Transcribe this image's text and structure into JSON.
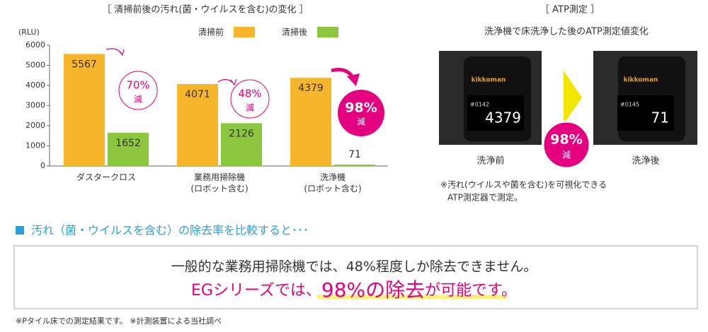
{
  "chart_data": {
    "type": "bar",
    "title": "［ 清掃前後の汚れ(菌・ウイルスを含む)の変化 ］",
    "y_label": "(RLU)",
    "categories": [
      "ダスタークロス",
      "業務用掃除機\n(ロボット含む)",
      "洗浄機\n(ロボット含む)"
    ],
    "series": [
      {
        "name": "清掃前",
        "color": "#f7b52c",
        "values": [
          5567,
          4071,
          4379
        ]
      },
      {
        "name": "清掃後",
        "color": "#8cc63f",
        "values": [
          1652,
          2126,
          71
        ]
      }
    ],
    "ylim": [
      0,
      6000
    ],
    "yticks": [
      0,
      1000,
      2000,
      3000,
      4000,
      5000,
      6000
    ],
    "grid": false,
    "annotations": [
      {
        "percent": "70%",
        "suffix": "減"
      },
      {
        "percent": "48%",
        "suffix": "減"
      },
      {
        "percent": "98%",
        "suffix": "減"
      }
    ]
  },
  "atp": {
    "title": "［ ATP測定 ］",
    "subtitle": "洗浄機で床洗浄した後のATP測定値変化",
    "before": {
      "label": "洗浄前",
      "brand": "kikkoman",
      "id": "#0142",
      "reading": "4379"
    },
    "after": {
      "label": "洗浄後",
      "brand": "kikkoman",
      "id": "#0145",
      "reading": "71"
    },
    "badge": {
      "percent": "98%",
      "suffix": "減"
    },
    "note": [
      "※汚れ(ウイルスや菌を含む)を可視化できる",
      "ATP測定器で測定。"
    ]
  },
  "summary": {
    "heading": "汚れ（菌・ウイルスを含む）の除去率を比較すると･･･",
    "line1": "一般的な業務用掃除機では、48%程度しか除去できません。",
    "line2": [
      "EGシリーズでは、",
      "98%の除去",
      "が可能",
      "です。"
    ]
  },
  "footnote": "※Pタイル床での測定結果です。 ※計測装置による当社調べ"
}
